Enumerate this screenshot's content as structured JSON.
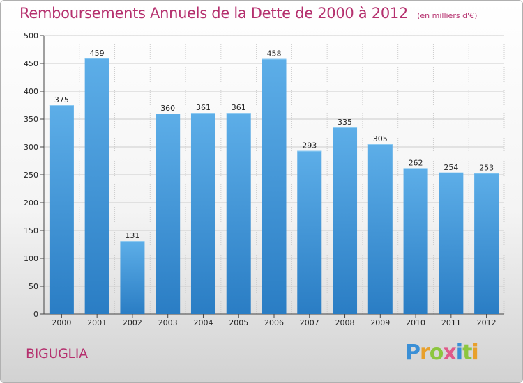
{
  "chart_data": {
    "type": "bar",
    "title": "Remboursements Annuels de la Dette de 2000 à 2012",
    "subtitle": "(en milliers d'€)",
    "categories": [
      "2000",
      "2001",
      "2002",
      "2003",
      "2004",
      "2005",
      "2006",
      "2007",
      "2008",
      "2009",
      "2010",
      "2011",
      "2012"
    ],
    "values": [
      375,
      459,
      131,
      360,
      361,
      361,
      458,
      293,
      335,
      305,
      262,
      254,
      253
    ],
    "ylim": [
      0,
      500
    ],
    "yticks": [
      0,
      50,
      100,
      150,
      200,
      250,
      300,
      350,
      400,
      450,
      500
    ],
    "grid": true,
    "colors": {
      "bar_light": "#5daee8",
      "bar_dark": "#2a7dc4",
      "grid": "#cccccc"
    }
  },
  "commune": "BIGUGLIA",
  "brand": {
    "letters": [
      {
        "char": "P",
        "color": "#3a8fd6"
      },
      {
        "char": "r",
        "color": "#e8a02c"
      },
      {
        "char": "o",
        "color": "#8cc63f"
      },
      {
        "char": "x",
        "color": "#e05a8a"
      },
      {
        "char": "i",
        "color": "#3a8fd6"
      },
      {
        "char": "t",
        "color": "#8cc63f"
      },
      {
        "char": "i",
        "color": "#e8a02c"
      }
    ]
  }
}
